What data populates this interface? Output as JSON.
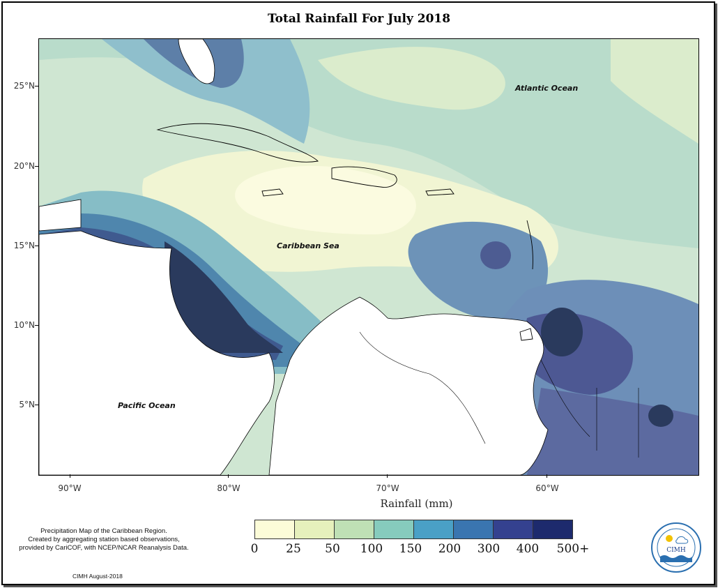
{
  "title": "Total Rainfall For July 2018",
  "axes": {
    "lat_ticks": [
      "25°N",
      "20°N",
      "15°N",
      "10°N",
      "5°N"
    ],
    "lon_ticks": [
      "90°W",
      "80°W",
      "70°W",
      "60°W"
    ],
    "xlabel": "Rainfall (mm)"
  },
  "labels": {
    "atlantic": "Atlantic Ocean",
    "caribbean": "Caribbean Sea",
    "pacific": "Pacific Ocean"
  },
  "legend": {
    "thresholds": [
      "0",
      "25",
      "50",
      "100",
      "150",
      "200",
      "300",
      "400",
      "500+"
    ],
    "colors": [
      "#fcfcd8",
      "#e6f0bc",
      "#bfe0b5",
      "#86cbbd",
      "#4aa0c6",
      "#3a75b0",
      "#34418f",
      "#1d2a6d",
      "#0f1a48"
    ]
  },
  "note": {
    "line1": "Precipitation Map of the Caribbean Region.",
    "line2": "Created by aggregating station based observations,",
    "line3": "provided by CariCOF, with NCEP/NCAR Reanalysis Data."
  },
  "credit": "CIMH August-2018",
  "logo": {
    "text": "CIMH"
  }
}
